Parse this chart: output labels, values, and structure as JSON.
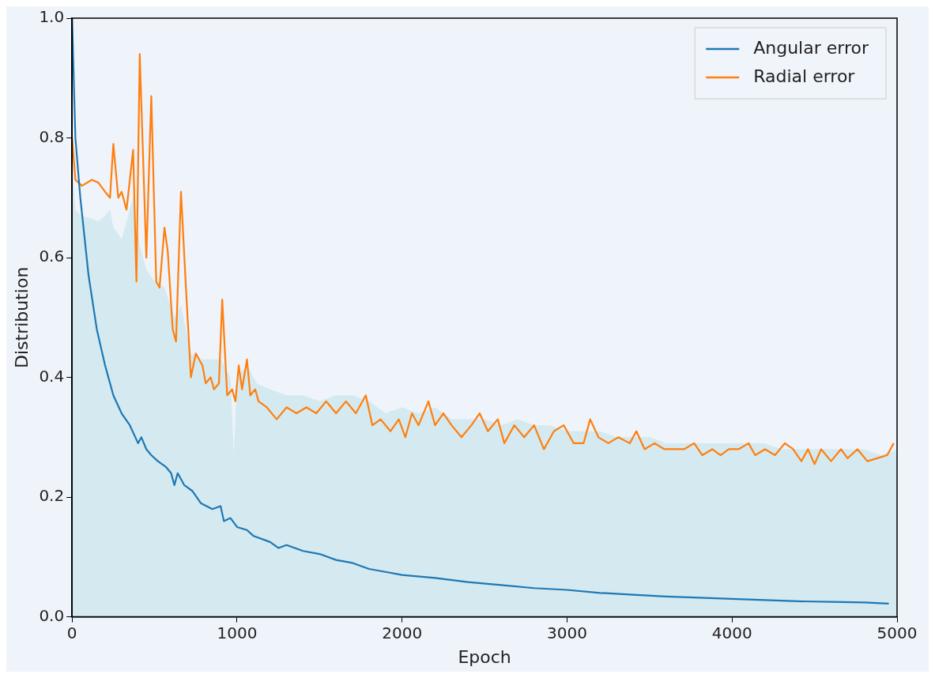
{
  "chart_data": {
    "type": "line",
    "xlabel": "Epoch",
    "ylabel": "Distribution",
    "xlim": [
      0,
      5000
    ],
    "ylim": [
      0,
      1
    ],
    "xticks": [
      0,
      1000,
      2000,
      3000,
      4000,
      5000
    ],
    "yticks": [
      {
        "value": 0,
        "label": "0.0"
      },
      0.2,
      0.4,
      0.6,
      0.8,
      {
        "value": 1,
        "label": "1.0"
      }
    ],
    "grid": false,
    "legend": "top right",
    "series": [
      {
        "type": "area",
        "color": "#d4eaf0",
        "x": [
          0,
          20,
          60,
          120,
          160,
          200,
          230,
          250,
          280,
          300,
          330,
          370,
          410,
          450,
          500,
          560,
          620,
          660,
          720,
          780,
          850,
          900,
          960,
          980,
          1000,
          1060,
          1120,
          1200,
          1300,
          1400,
          1500,
          1600,
          1700,
          1800,
          1900,
          2000,
          2100,
          2200,
          2300,
          2400,
          2500,
          2600,
          2700,
          2800,
          2900,
          3000,
          3100,
          3200,
          3300,
          3400,
          3500,
          3600,
          3700,
          3800,
          3900,
          4000,
          4100,
          4200,
          4300,
          4400,
          4500,
          4600,
          4700,
          4800,
          4900,
          5000
        ],
        "values": [
          0.75,
          0.68,
          0.67,
          0.665,
          0.66,
          0.67,
          0.68,
          0.65,
          0.64,
          0.63,
          0.66,
          0.7,
          0.62,
          0.58,
          0.56,
          0.55,
          0.5,
          0.52,
          0.44,
          0.43,
          0.43,
          0.43,
          0.4,
          0.27,
          0.4,
          0.42,
          0.39,
          0.38,
          0.37,
          0.37,
          0.36,
          0.37,
          0.37,
          0.36,
          0.34,
          0.35,
          0.34,
          0.35,
          0.33,
          0.33,
          0.33,
          0.32,
          0.33,
          0.32,
          0.32,
          0.31,
          0.31,
          0.31,
          0.3,
          0.3,
          0.3,
          0.29,
          0.29,
          0.29,
          0.29,
          0.29,
          0.29,
          0.29,
          0.28,
          0.28,
          0.28,
          0.28,
          0.28,
          0.28,
          0.27,
          0.28
        ]
      },
      {
        "type": "line",
        "name": "Angular error",
        "color": "#1f77b4",
        "x": [
          0,
          20,
          50,
          100,
          150,
          200,
          250,
          300,
          350,
          400,
          420,
          450,
          480,
          520,
          570,
          600,
          620,
          640,
          680,
          730,
          780,
          850,
          900,
          920,
          960,
          1000,
          1060,
          1100,
          1200,
          1250,
          1300,
          1400,
          1500,
          1600,
          1700,
          1800,
          1900,
          2000,
          2200,
          2400,
          2600,
          2800,
          3000,
          3200,
          3400,
          3600,
          3800,
          4000,
          4200,
          4400,
          4600,
          4800,
          4950
        ],
        "values": [
          1.0,
          0.8,
          0.7,
          0.57,
          0.48,
          0.42,
          0.37,
          0.34,
          0.32,
          0.29,
          0.3,
          0.28,
          0.27,
          0.26,
          0.25,
          0.24,
          0.22,
          0.24,
          0.22,
          0.21,
          0.19,
          0.18,
          0.185,
          0.16,
          0.165,
          0.15,
          0.145,
          0.135,
          0.125,
          0.115,
          0.12,
          0.11,
          0.105,
          0.095,
          0.09,
          0.08,
          0.075,
          0.07,
          0.065,
          0.058,
          0.053,
          0.048,
          0.045,
          0.04,
          0.037,
          0.034,
          0.032,
          0.03,
          0.028,
          0.026,
          0.025,
          0.024,
          0.022
        ]
      },
      {
        "type": "line",
        "name": "Radial error",
        "color": "#ff7f0e",
        "x": [
          0,
          20,
          60,
          120,
          160,
          200,
          230,
          250,
          280,
          300,
          330,
          370,
          390,
          410,
          450,
          480,
          510,
          530,
          560,
          580,
          610,
          630,
          660,
          690,
          720,
          750,
          790,
          810,
          840,
          860,
          890,
          910,
          940,
          970,
          990,
          1010,
          1030,
          1060,
          1080,
          1110,
          1130,
          1180,
          1240,
          1300,
          1360,
          1420,
          1480,
          1540,
          1600,
          1660,
          1720,
          1780,
          1820,
          1870,
          1930,
          1980,
          2020,
          2060,
          2100,
          2160,
          2200,
          2250,
          2300,
          2360,
          2420,
          2470,
          2520,
          2580,
          2620,
          2680,
          2740,
          2800,
          2860,
          2920,
          2980,
          3040,
          3100,
          3140,
          3190,
          3250,
          3310,
          3380,
          3420,
          3470,
          3530,
          3590,
          3650,
          3710,
          3770,
          3820,
          3880,
          3930,
          3980,
          4040,
          4100,
          4140,
          4200,
          4260,
          4320,
          4370,
          4420,
          4460,
          4500,
          4540,
          4600,
          4660,
          4700,
          4760,
          4820,
          4880,
          4940,
          4980
        ],
        "values": [
          0.8,
          0.73,
          0.72,
          0.73,
          0.725,
          0.71,
          0.7,
          0.79,
          0.7,
          0.71,
          0.68,
          0.78,
          0.56,
          0.94,
          0.6,
          0.87,
          0.56,
          0.55,
          0.65,
          0.61,
          0.48,
          0.46,
          0.71,
          0.55,
          0.4,
          0.44,
          0.42,
          0.39,
          0.4,
          0.38,
          0.39,
          0.53,
          0.37,
          0.38,
          0.36,
          0.42,
          0.38,
          0.43,
          0.37,
          0.38,
          0.36,
          0.35,
          0.33,
          0.35,
          0.34,
          0.35,
          0.34,
          0.36,
          0.34,
          0.36,
          0.34,
          0.37,
          0.32,
          0.33,
          0.31,
          0.33,
          0.3,
          0.34,
          0.32,
          0.36,
          0.32,
          0.34,
          0.32,
          0.3,
          0.32,
          0.34,
          0.31,
          0.33,
          0.29,
          0.32,
          0.3,
          0.32,
          0.28,
          0.31,
          0.32,
          0.29,
          0.29,
          0.33,
          0.3,
          0.29,
          0.3,
          0.29,
          0.31,
          0.28,
          0.29,
          0.28,
          0.28,
          0.28,
          0.29,
          0.27,
          0.28,
          0.27,
          0.28,
          0.28,
          0.29,
          0.27,
          0.28,
          0.27,
          0.29,
          0.28,
          0.26,
          0.28,
          0.255,
          0.28,
          0.26,
          0.28,
          0.265,
          0.28,
          0.26,
          0.265,
          0.27,
          0.29
        ]
      }
    ]
  }
}
